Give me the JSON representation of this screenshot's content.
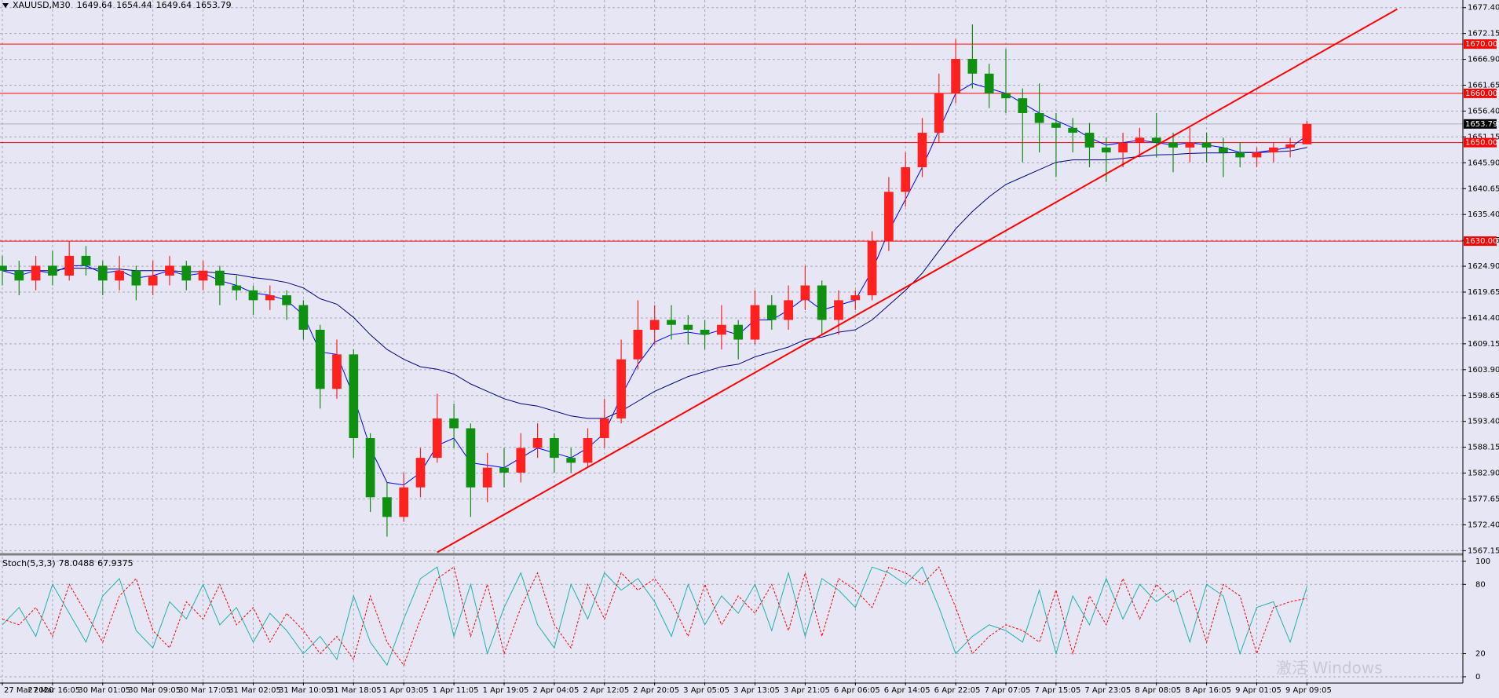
{
  "chart_data": {
    "type": "candlestick",
    "symbol": "XAUUSD,M30",
    "x_labels": [
      "27 Mar 2020",
      "27 Mar 16:05",
      "30 Mar 01:05",
      "30 Mar 09:05",
      "30 Mar 17:05",
      "31 Mar 02:05",
      "31 Mar 10:05",
      "31 Mar 18:05",
      "1 Apr 03:05",
      "1 Apr 11:05",
      "1 Apr 19:05",
      "2 Apr 04:05",
      "2 Apr 12:05",
      "2 Apr 20:05",
      "3 Apr 05:05",
      "3 Apr 13:05",
      "3 Apr 21:05",
      "6 Apr 06:05",
      "6 Apr 14:05",
      "6 Apr 22:05",
      "7 Apr 07:05",
      "7 Apr 15:05",
      "7 Apr 23:05",
      "8 Apr 08:05",
      "8 Apr 16:05",
      "9 Apr 01:05",
      "9 Apr 09:05"
    ],
    "open": [
      1625,
      1624,
      1622,
      1625,
      1623,
      1627,
      1625,
      1622,
      1624,
      1621,
      1623,
      1625,
      1622,
      1624,
      1621,
      1620,
      1618,
      1619,
      1617,
      1612,
      1600,
      1607,
      1590,
      1578,
      1574,
      1580,
      1586,
      1594,
      1592,
      1580,
      1584,
      1583,
      1588,
      1590,
      1586,
      1585,
      1590,
      1594,
      1606,
      1612,
      1614,
      1613,
      1612,
      1611,
      1613,
      1610,
      1617,
      1614,
      1618,
      1621,
      1614,
      1618,
      1619,
      1630,
      1640,
      1645,
      1652,
      1660,
      1667,
      1664,
      1660,
      1659,
      1656,
      1654,
      1653,
      1652,
      1649,
      1648,
      1650,
      1651,
      1650,
      1649,
      1650,
      1649,
      1648,
      1647,
      1648,
      1649,
      1649.64
    ],
    "high": [
      1627,
      1626,
      1627,
      1628,
      1630,
      1629,
      1626,
      1627,
      1625,
      1626,
      1627,
      1626,
      1626,
      1625,
      1623,
      1621,
      1621,
      1620,
      1618,
      1613,
      1610,
      1608,
      1591,
      1581,
      1583,
      1588,
      1599,
      1597,
      1593,
      1587,
      1588,
      1591,
      1593,
      1591,
      1588,
      1592,
      1598,
      1610,
      1618,
      1617,
      1617,
      1615,
      1614,
      1617,
      1614,
      1620,
      1619,
      1621,
      1625,
      1622,
      1620,
      1620,
      1632,
      1643,
      1648,
      1655,
      1664,
      1671,
      1674,
      1666,
      1669,
      1661,
      1662,
      1656,
      1655,
      1654,
      1651,
      1652,
      1653,
      1656,
      1652,
      1653,
      1652,
      1651,
      1650,
      1649,
      1650,
      1651,
      1654.44
    ],
    "low": [
      1621,
      1619,
      1620,
      1621,
      1622,
      1623,
      1619,
      1620,
      1618,
      1619,
      1621,
      1620,
      1620,
      1617,
      1618,
      1615,
      1616,
      1614,
      1610,
      1596,
      1598,
      1586,
      1575,
      1570,
      1573,
      1578,
      1585,
      1588,
      1574,
      1577,
      1580,
      1581,
      1586,
      1583,
      1583,
      1584,
      1588,
      1593,
      1604,
      1609,
      1610,
      1609,
      1608,
      1608,
      1606,
      1609,
      1612,
      1612,
      1616,
      1611,
      1611,
      1616,
      1618,
      1628,
      1637,
      1643,
      1650,
      1658,
      1661,
      1657,
      1656,
      1646,
      1648,
      1643,
      1648,
      1645,
      1642,
      1645,
      1647,
      1647,
      1644,
      1646,
      1646,
      1643,
      1645,
      1645,
      1646,
      1647,
      1649.64
    ],
    "close": [
      1624,
      1622,
      1625,
      1623,
      1627,
      1625,
      1622,
      1624,
      1621,
      1623,
      1625,
      1622,
      1624,
      1621,
      1620,
      1618,
      1619,
      1617,
      1612,
      1600,
      1607,
      1590,
      1578,
      1574,
      1580,
      1586,
      1594,
      1592,
      1580,
      1584,
      1583,
      1588,
      1590,
      1586,
      1585,
      1590,
      1594,
      1606,
      1612,
      1614,
      1613,
      1612,
      1611,
      1613,
      1610,
      1617,
      1614,
      1618,
      1621,
      1614,
      1618,
      1619,
      1630,
      1640,
      1645,
      1652,
      1660,
      1667,
      1664,
      1660,
      1659,
      1656,
      1654,
      1653,
      1652,
      1649,
      1648,
      1650,
      1651,
      1650,
      1649,
      1650,
      1649,
      1648,
      1647,
      1648,
      1649,
      1649.64,
      1653.79
    ],
    "candle_colors": {
      "up": "#ff2020",
      "down": "#109010"
    },
    "moving_averages": [
      {
        "color": "#0000ff",
        "values": [
          1624,
          1623,
          1624,
          1623.5,
          1625,
          1625,
          1623.5,
          1624,
          1622.5,
          1623,
          1624,
          1623,
          1623.5,
          1622,
          1621,
          1619.5,
          1619,
          1618,
          1615,
          1607.5,
          1607,
          1598.5,
          1588,
          1581,
          1580.5,
          1583,
          1588.5,
          1590,
          1585,
          1584.5,
          1584,
          1586,
          1588,
          1587,
          1586,
          1588,
          1591,
          1598.5,
          1605,
          1609.5,
          1611,
          1611.5,
          1611,
          1612,
          1611,
          1614,
          1614,
          1616,
          1618.5,
          1616,
          1617,
          1618,
          1624,
          1632,
          1638.5,
          1645,
          1652.5,
          1660,
          1662,
          1661,
          1660,
          1658,
          1656,
          1654.5,
          1653,
          1651,
          1649.5,
          1650,
          1650.5,
          1650,
          1649.5,
          1650,
          1649.5,
          1649,
          1648,
          1648,
          1648.5,
          1649,
          1651.4
        ]
      },
      {
        "color": "#000080",
        "values": [
          1624,
          1624,
          1624,
          1624,
          1624.5,
          1624.5,
          1624.3,
          1624.3,
          1624,
          1624,
          1624,
          1623.8,
          1623.8,
          1623.5,
          1623.2,
          1622.6,
          1622.2,
          1621.6,
          1620.5,
          1618.3,
          1617.2,
          1614.5,
          1611,
          1608,
          1606,
          1604.5,
          1604,
          1603,
          1601,
          1599.5,
          1598,
          1597,
          1596.5,
          1595.5,
          1594.5,
          1594,
          1594,
          1595.5,
          1597.5,
          1599.5,
          1601,
          1602.5,
          1603.5,
          1604.5,
          1605,
          1606.5,
          1607.5,
          1608.5,
          1610,
          1610.5,
          1611.5,
          1612,
          1614,
          1617,
          1620,
          1623.5,
          1628,
          1632.5,
          1636,
          1639,
          1641.5,
          1643,
          1644.5,
          1646,
          1646.5,
          1646.5,
          1646.5,
          1646.8,
          1647.2,
          1647.5,
          1647.6,
          1647.8,
          1647.9,
          1647.9,
          1648,
          1648,
          1648.1,
          1648.3,
          1649
        ]
      }
    ],
    "ylim": [
      1566.57,
      1678.95
    ],
    "yticks": [
      {
        "value": 1677.4,
        "label": "1677.40"
      },
      1672.15,
      {
        "value": 1666.9,
        "label": "1666.90"
      },
      1661.65,
      {
        "value": 1656.4,
        "label": "1656.40"
      },
      1651.15,
      {
        "value": 1645.9,
        "label": "1645.90"
      },
      1640.65,
      {
        "value": 1635.4,
        "label": "1635.40"
      },
      1630.15,
      {
        "value": 1624.9,
        "label": "1624.90"
      },
      1619.65,
      {
        "value": 1614.4,
        "label": "1614.40"
      },
      1609.15,
      {
        "value": 1603.9,
        "label": "1603.90"
      },
      1598.65,
      {
        "value": 1593.4,
        "label": "1593.40"
      },
      1588.15,
      {
        "value": 1582.9,
        "label": "1582.90"
      },
      1577.65,
      {
        "value": 1572.4,
        "label": "1572.40"
      },
      1567.15
    ],
    "grid": true,
    "levels": [
      {
        "value": 1670,
        "label": "1670.00"
      },
      {
        "value": 1660,
        "label": "1660.00"
      },
      {
        "value": 1650,
        "label": "1650.00"
      },
      {
        "value": 1630,
        "label": "1630.00"
      }
    ],
    "level_color": "#ff0000",
    "current_price": 1653.79,
    "trendline": {
      "x": [
        26,
        83.4
      ],
      "y": [
        1566.8,
        1677.1
      ],
      "color": "#ff0000"
    },
    "stoch": {
      "name": "Stoch(5,3,3)",
      "main": {
        "color": "#20b2aa",
        "values": [
          45,
          60,
          35,
          80,
          55,
          30,
          70,
          85,
          40,
          25,
          65,
          50,
          80,
          45,
          60,
          30,
          55,
          40,
          20,
          35,
          15,
          70,
          30,
          10,
          50,
          85,
          95,
          35,
          80,
          20,
          60,
          90,
          45,
          25,
          80,
          50,
          90,
          75,
          85,
          65,
          35,
          80,
          45,
          70,
          55,
          80,
          40,
          90,
          35,
          85,
          75,
          60,
          95,
          90,
          80,
          95,
          60,
          20,
          35,
          45,
          40,
          30,
          75,
          20,
          70,
          45,
          85,
          50,
          80,
          65,
          75,
          30,
          80,
          70,
          20,
          60,
          65,
          30,
          78.0488
        ]
      },
      "signal": {
        "color": "#ff0000",
        "values": [
          50,
          45,
          60,
          35,
          80,
          55,
          30,
          70,
          85,
          40,
          25,
          65,
          50,
          80,
          45,
          60,
          30,
          55,
          40,
          20,
          35,
          15,
          70,
          30,
          10,
          50,
          85,
          95,
          35,
          80,
          20,
          60,
          90,
          45,
          25,
          80,
          50,
          90,
          75,
          85,
          65,
          35,
          80,
          45,
          70,
          55,
          80,
          40,
          90,
          35,
          85,
          75,
          60,
          95,
          90,
          80,
          95,
          60,
          20,
          35,
          45,
          40,
          30,
          75,
          20,
          70,
          45,
          85,
          50,
          80,
          65,
          75,
          30,
          80,
          70,
          20,
          60,
          65,
          67.9375
        ]
      },
      "ylim": [
        -4.8,
        104
      ],
      "yticks": [
        100,
        80,
        20,
        0
      ]
    },
    "watermark": "激活 Windows"
  }
}
